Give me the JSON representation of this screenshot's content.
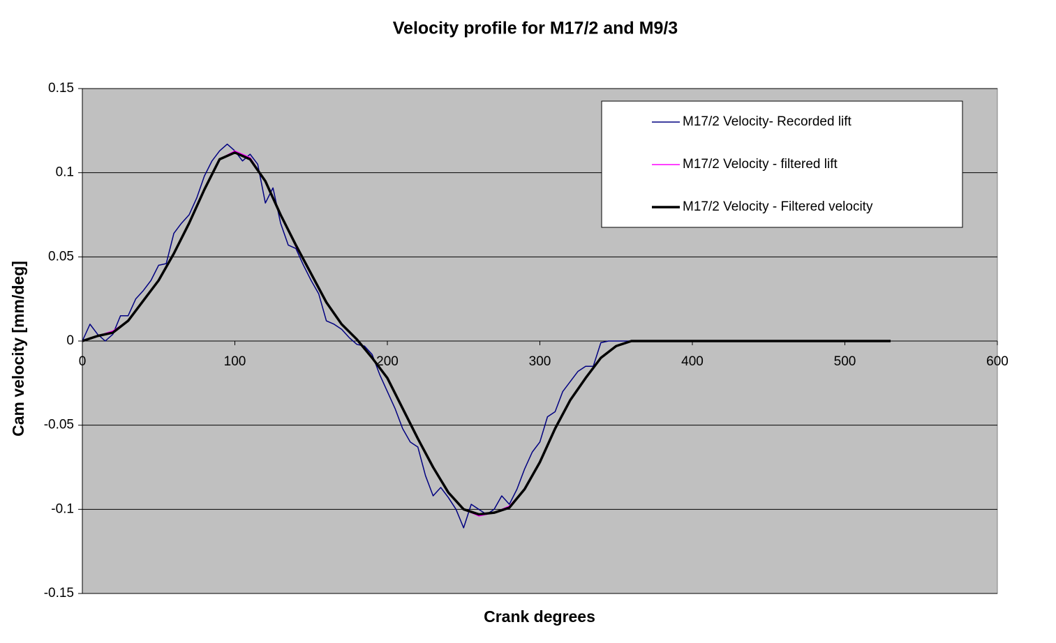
{
  "chart_data": {
    "type": "line",
    "title": "Velocity  profile  for  M17/2  and  M9/3",
    "x_label": "Crank degrees",
    "y_label": "Cam velocity [mm/deg]",
    "xlim": [
      0,
      600
    ],
    "xticks": [
      0,
      100,
      200,
      300,
      400,
      500,
      600
    ],
    "ylim": [
      -0.15,
      0.15
    ],
    "yticks": [
      -0.15,
      -0.1,
      -0.05,
      0,
      0.05,
      0.1,
      0.15
    ],
    "grid": true,
    "legend_position": "upper right",
    "series": [
      {
        "name": "M17/2 Velocity- Recorded lift",
        "color": "#000080",
        "width": 1.5,
        "x": [
          0,
          5,
          10,
          15,
          20,
          25,
          30,
          35,
          40,
          45,
          50,
          55,
          60,
          65,
          70,
          75,
          80,
          85,
          90,
          95,
          100,
          105,
          110,
          115,
          120,
          125,
          130,
          135,
          140,
          145,
          150,
          155,
          160,
          165,
          170,
          175,
          180,
          185,
          190,
          195,
          200,
          205,
          210,
          215,
          220,
          225,
          230,
          235,
          240,
          245,
          250,
          255,
          260,
          265,
          270,
          275,
          280,
          285,
          290,
          295,
          300,
          305,
          310,
          315,
          320,
          325,
          330,
          335,
          340,
          345,
          350,
          355,
          360
        ],
        "values": [
          0,
          0.01,
          0.004,
          0,
          0.004,
          0.015,
          0.015,
          0.025,
          0.03,
          0.036,
          0.045,
          0.046,
          0.064,
          0.07,
          0.075,
          0.085,
          0.098,
          0.107,
          0.113,
          0.117,
          0.113,
          0.107,
          0.111,
          0.105,
          0.082,
          0.091,
          0.07,
          0.057,
          0.055,
          0.045,
          0.036,
          0.028,
          0.012,
          0.01,
          0.007,
          0.002,
          -0.002,
          -0.003,
          -0.008,
          -0.02,
          -0.03,
          -0.04,
          -0.052,
          -0.06,
          -0.063,
          -0.08,
          -0.092,
          -0.087,
          -0.093,
          -0.1,
          -0.111,
          -0.097,
          -0.1,
          -0.103,
          -0.1,
          -0.092,
          -0.097,
          -0.088,
          -0.076,
          -0.066,
          -0.06,
          -0.045,
          -0.042,
          -0.03,
          -0.024,
          -0.018,
          -0.015,
          -0.015,
          -0.001,
          0,
          0,
          0,
          0
        ]
      },
      {
        "name": "M17/2 Velocity - filtered lift",
        "color": "#ff00ff",
        "width": 1.5,
        "x": [
          0,
          10,
          20,
          30,
          40,
          50,
          60,
          70,
          80,
          90,
          100,
          110,
          120,
          130,
          140,
          150,
          160,
          170,
          180,
          190,
          200,
          210,
          220,
          230,
          240,
          250,
          260,
          270,
          280,
          290,
          300,
          310,
          320,
          330,
          340,
          350,
          360
        ],
        "values": [
          0,
          0.003,
          0.006,
          0.012,
          0.024,
          0.036,
          0.052,
          0.07,
          0.09,
          0.108,
          0.113,
          0.109,
          0.095,
          0.075,
          0.056,
          0.04,
          0.023,
          0.01,
          0.001,
          -0.01,
          -0.022,
          -0.04,
          -0.058,
          -0.075,
          -0.09,
          -0.1,
          -0.104,
          -0.102,
          -0.098,
          -0.088,
          -0.072,
          -0.052,
          -0.035,
          -0.022,
          -0.01,
          -0.003,
          0
        ]
      },
      {
        "name": "M17/2 Velocity - Filtered velocity",
        "color": "#000000",
        "width": 3.5,
        "x": [
          0,
          10,
          20,
          30,
          40,
          50,
          60,
          70,
          80,
          90,
          100,
          110,
          120,
          130,
          140,
          150,
          160,
          170,
          180,
          190,
          200,
          210,
          220,
          230,
          240,
          250,
          260,
          270,
          280,
          290,
          300,
          310,
          320,
          330,
          340,
          350,
          360,
          370,
          380,
          390,
          400,
          410,
          420,
          430,
          440,
          450,
          460,
          470,
          480,
          490,
          500,
          510,
          520,
          530
        ],
        "values": [
          0,
          0.003,
          0.005,
          0.012,
          0.024,
          0.036,
          0.052,
          0.07,
          0.09,
          0.108,
          0.112,
          0.108,
          0.095,
          0.075,
          0.057,
          0.04,
          0.023,
          0.01,
          0.001,
          -0.01,
          -0.022,
          -0.04,
          -0.058,
          -0.075,
          -0.09,
          -0.1,
          -0.103,
          -0.102,
          -0.099,
          -0.088,
          -0.072,
          -0.052,
          -0.035,
          -0.022,
          -0.01,
          -0.003,
          0,
          0,
          0,
          0,
          0,
          0,
          0,
          0,
          0,
          0,
          0,
          0,
          0,
          0,
          0,
          0,
          0,
          0
        ]
      }
    ]
  }
}
